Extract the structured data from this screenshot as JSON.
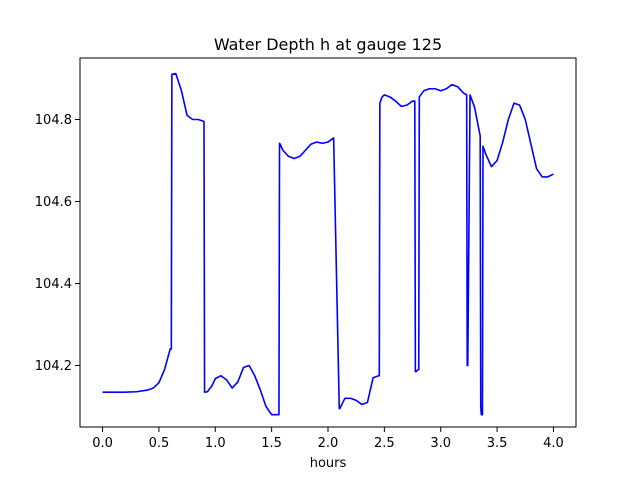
{
  "chart_data": {
    "type": "line",
    "title": "Water Depth h at gauge 125",
    "xlabel": "hours",
    "ylabel": "",
    "xlim": [
      -0.2,
      4.2
    ],
    "ylim": [
      104.05,
      104.95
    ],
    "x_ticks": [
      0.0,
      0.5,
      1.0,
      1.5,
      2.0,
      2.5,
      3.0,
      3.5,
      4.0
    ],
    "x_tick_labels": [
      "0.0",
      "0.5",
      "1.0",
      "1.5",
      "2.0",
      "2.5",
      "3.0",
      "3.5",
      "4.0"
    ],
    "y_ticks": [
      104.2,
      104.4,
      104.6,
      104.8
    ],
    "y_tick_labels": [
      "104.2",
      "104.4",
      "104.6",
      "104.8"
    ],
    "grid": false,
    "legend": "none",
    "series": [
      {
        "color": "#0000ff",
        "x": [
          0.0,
          0.1,
          0.2,
          0.3,
          0.4,
          0.45,
          0.5,
          0.55,
          0.6,
          0.61,
          0.615,
          0.65,
          0.7,
          0.75,
          0.8,
          0.85,
          0.9,
          0.905,
          0.93,
          0.97,
          1.0,
          1.05,
          1.1,
          1.15,
          1.2,
          1.25,
          1.3,
          1.35,
          1.4,
          1.45,
          1.5,
          1.55,
          1.565,
          1.57,
          1.575,
          1.6,
          1.65,
          1.7,
          1.75,
          1.8,
          1.85,
          1.9,
          1.95,
          2.0,
          2.05,
          2.1,
          2.105,
          2.15,
          2.2,
          2.25,
          2.3,
          2.35,
          2.4,
          2.45,
          2.455,
          2.46,
          2.48,
          2.5,
          2.55,
          2.6,
          2.65,
          2.7,
          2.75,
          2.77,
          2.775,
          2.78,
          2.8,
          2.805,
          2.81,
          2.85,
          2.9,
          2.95,
          3.0,
          3.05,
          3.1,
          3.15,
          3.2,
          3.23,
          3.235,
          3.24,
          3.26,
          3.3,
          3.35,
          3.355,
          3.36,
          3.37,
          3.375,
          3.4,
          3.45,
          3.5,
          3.55,
          3.6,
          3.65,
          3.7,
          3.75,
          3.8,
          3.85,
          3.9,
          3.95,
          4.0
        ],
        "y": [
          104.135,
          104.135,
          104.135,
          104.136,
          104.14,
          104.145,
          104.158,
          104.19,
          104.24,
          104.24,
          104.91,
          104.912,
          104.87,
          104.81,
          104.8,
          104.8,
          104.795,
          104.135,
          104.136,
          104.15,
          104.168,
          104.175,
          104.165,
          104.145,
          104.16,
          104.195,
          104.2,
          104.175,
          104.14,
          104.1,
          104.08,
          104.08,
          104.08,
          104.742,
          104.74,
          104.725,
          104.71,
          104.705,
          104.71,
          104.725,
          104.74,
          104.745,
          104.742,
          104.745,
          104.755,
          104.095,
          104.095,
          104.12,
          104.12,
          104.115,
          104.105,
          104.11,
          104.17,
          104.175,
          104.175,
          104.84,
          104.855,
          104.86,
          104.855,
          104.845,
          104.832,
          104.835,
          104.845,
          104.845,
          104.185,
          104.185,
          104.19,
          104.19,
          104.855,
          104.87,
          104.875,
          104.875,
          104.87,
          104.875,
          104.885,
          104.88,
          104.865,
          104.86,
          104.2,
          104.2,
          104.86,
          104.83,
          104.76,
          104.1,
          104.08,
          104.08,
          104.735,
          104.715,
          104.685,
          104.7,
          104.745,
          104.8,
          104.84,
          104.835,
          104.8,
          104.74,
          104.68,
          104.66,
          104.66,
          104.667
        ]
      }
    ]
  }
}
